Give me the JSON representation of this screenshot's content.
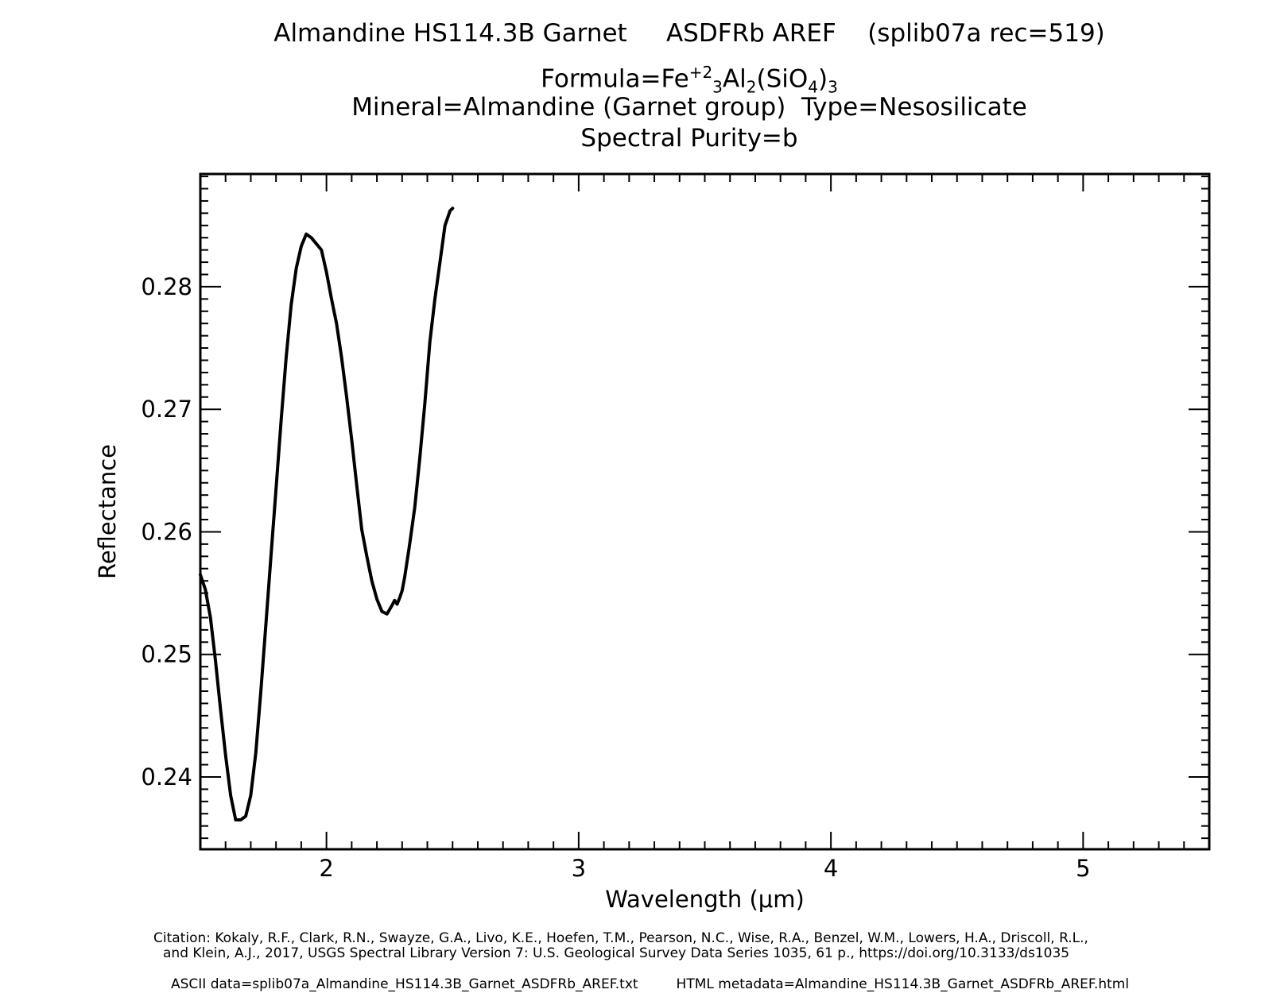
{
  "titles": {
    "line1": "Almandine HS114.3B Garnet     ASDFRb AREF    (splib07a rec=519)",
    "formula_prefix": "Formula=Fe",
    "formula_sup": "+2",
    "formula_sub1": "3",
    "formula_mid": "Al",
    "formula_sub2": "2",
    "formula_mid2": "(SiO",
    "formula_sub3": "4",
    "formula_end": ")",
    "formula_sub4": "3",
    "line3": "Mineral=Almandine (Garnet group)  Type=Nesosilicate",
    "line4": "Spectral Purity=b"
  },
  "footer": {
    "citation1": "Citation: Kokaly, R.F., Clark, R.N., Swayze, G.A., Livo, K.E., Hoefen, T.M., Pearson, N.C., Wise, R.A., Benzel, W.M., Lowers, H.A., Driscoll, R.L.,",
    "citation2": "and Klein, A.J., 2017, USGS Spectral Library Version 7: U.S. Geological Survey Data Series 1035, 61 p., https://doi.org/10.3133/ds1035",
    "ascii": "ASCII data=splib07a_Almandine_HS114.3B_Garnet_ASDFRb_AREF.txt",
    "html": "HTML metadata=Almandine_HS114.3B_Garnet_ASDFRb_AREF.html"
  },
  "chart_data": {
    "type": "line",
    "xlabel": "Wavelength (μm)",
    "ylabel": "Reflectance",
    "xlim": [
      1.5,
      5.5
    ],
    "ylim": [
      0.2341,
      0.2892
    ],
    "xticks": [
      2,
      3,
      4,
      5
    ],
    "yticks": [
      0.24,
      0.25,
      0.26,
      0.27,
      0.28
    ],
    "ytick_labels": [
      "0.24",
      "0.25",
      "0.26",
      "0.27",
      "0.28"
    ],
    "xtick_labels": [
      "2",
      "3",
      "4",
      "5"
    ],
    "line_color": "#000000",
    "series": [
      {
        "x": [
          1.5,
          1.52,
          1.54,
          1.56,
          1.58,
          1.6,
          1.62,
          1.64,
          1.66,
          1.68,
          1.7,
          1.72,
          1.74,
          1.76,
          1.78,
          1.8,
          1.82,
          1.84,
          1.86,
          1.88,
          1.9,
          1.92,
          1.94,
          1.96,
          1.98,
          2.0,
          2.02,
          2.04,
          2.06,
          2.08,
          2.1,
          2.12,
          2.14,
          2.16,
          2.18,
          2.2,
          2.22,
          2.24,
          2.26,
          2.27,
          2.28,
          2.29,
          2.3,
          2.31,
          2.33,
          2.35,
          2.37,
          2.39,
          2.41,
          2.43,
          2.45,
          2.47,
          2.49,
          2.5
        ],
        "y": [
          0.2565,
          0.2553,
          0.253,
          0.2495,
          0.2455,
          0.2418,
          0.2385,
          0.2365,
          0.2365,
          0.2368,
          0.2385,
          0.242,
          0.247,
          0.2525,
          0.258,
          0.2635,
          0.269,
          0.2742,
          0.2785,
          0.2815,
          0.2833,
          0.2843,
          0.284,
          0.2835,
          0.283,
          0.2812,
          0.279,
          0.277,
          0.2742,
          0.271,
          0.2675,
          0.2638,
          0.2602,
          0.258,
          0.256,
          0.2545,
          0.2535,
          0.2533,
          0.254,
          0.2544,
          0.2541,
          0.2546,
          0.2552,
          0.2563,
          0.259,
          0.262,
          0.266,
          0.2705,
          0.2755,
          0.279,
          0.282,
          0.285,
          0.2862,
          0.2864
        ]
      }
    ]
  }
}
